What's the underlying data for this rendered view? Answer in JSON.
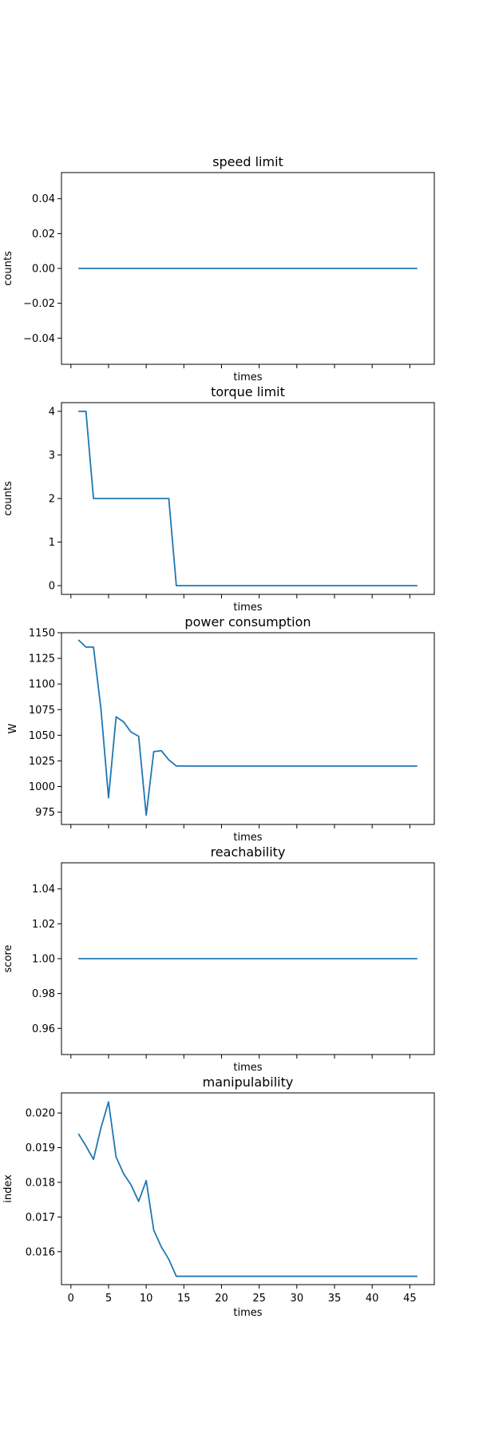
{
  "chart_data": [
    {
      "type": "line",
      "title": "speed limit",
      "xlabel": "times",
      "ylabel": "counts",
      "xlim": [
        -1.25,
        48.25
      ],
      "ylim": [
        -0.055,
        0.055
      ],
      "xticks": [
        0,
        5,
        10,
        15,
        20,
        25,
        30,
        35,
        40,
        45
      ],
      "yticks": [
        -0.04,
        -0.02,
        0.0,
        0.02,
        0.04
      ],
      "ytick_labels": [
        "−0.04",
        "−0.02",
        "0.00",
        "0.02",
        "0.04"
      ],
      "show_xtick_labels": false,
      "series": [
        {
          "x": [
            1,
            46
          ],
          "y": [
            0,
            0
          ]
        }
      ]
    },
    {
      "type": "line",
      "title": "torque limit",
      "xlabel": "times",
      "ylabel": "counts",
      "xlim": [
        -1.25,
        48.25
      ],
      "ylim": [
        -0.2,
        4.2
      ],
      "xticks": [
        0,
        5,
        10,
        15,
        20,
        25,
        30,
        35,
        40,
        45
      ],
      "yticks": [
        0,
        1,
        2,
        3,
        4
      ],
      "ytick_labels": [
        "0",
        "1",
        "2",
        "3",
        "4"
      ],
      "show_xtick_labels": false,
      "series": [
        {
          "x": [
            1,
            2,
            3,
            13,
            14,
            46
          ],
          "y": [
            4,
            4,
            2,
            2,
            0,
            0
          ]
        }
      ]
    },
    {
      "type": "line",
      "title": "power consumption",
      "xlabel": "times",
      "ylabel": "W",
      "xlim": [
        -1.25,
        48.25
      ],
      "ylim": [
        963,
        1150
      ],
      "xticks": [
        0,
        5,
        10,
        15,
        20,
        25,
        30,
        35,
        40,
        45
      ],
      "yticks": [
        975,
        1000,
        1025,
        1050,
        1075,
        1100,
        1125,
        1150
      ],
      "ytick_labels": [
        "975",
        "1000",
        "1025",
        "1050",
        "1075",
        "1100",
        "1125",
        "1150"
      ],
      "show_xtick_labels": false,
      "series": [
        {
          "x": [
            1,
            2,
            3,
            4,
            5,
            6,
            7,
            8,
            9,
            10,
            11,
            12,
            13,
            14,
            46
          ],
          "y": [
            1143,
            1136,
            1136,
            1075,
            989,
            1068,
            1063,
            1053,
            1049,
            972,
            1034,
            1035,
            1026,
            1020,
            1020
          ]
        }
      ]
    },
    {
      "type": "line",
      "title": "reachability",
      "xlabel": "times",
      "ylabel": "score",
      "xlim": [
        -1.25,
        48.25
      ],
      "ylim": [
        0.945,
        1.055
      ],
      "xticks": [
        0,
        5,
        10,
        15,
        20,
        25,
        30,
        35,
        40,
        45
      ],
      "yticks": [
        0.96,
        0.98,
        1.0,
        1.02,
        1.04
      ],
      "ytick_labels": [
        "0.96",
        "0.98",
        "1.00",
        "1.02",
        "1.04"
      ],
      "show_xtick_labels": false,
      "series": [
        {
          "x": [
            1,
            46
          ],
          "y": [
            1,
            1
          ]
        }
      ]
    },
    {
      "type": "line",
      "title": "manipulability",
      "xlabel": "times",
      "ylabel": "index",
      "xlim": [
        -1.25,
        48.25
      ],
      "ylim": [
        0.01505,
        0.02058
      ],
      "xticks": [
        0,
        5,
        10,
        15,
        20,
        25,
        30,
        35,
        40,
        45
      ],
      "yticks": [
        0.016,
        0.017,
        0.018,
        0.019,
        0.02
      ],
      "ytick_labels": [
        "0.016",
        "0.017",
        "0.018",
        "0.019",
        "0.020"
      ],
      "xtick_labels": [
        "0",
        "5",
        "10",
        "15",
        "20",
        "25",
        "30",
        "35",
        "40",
        "45"
      ],
      "show_xtick_labels": true,
      "series": [
        {
          "x": [
            1,
            2,
            3,
            4,
            5,
            6,
            7,
            8,
            9,
            10,
            11,
            12,
            13,
            14,
            46
          ],
          "y": [
            0.0194,
            0.01905,
            0.01866,
            0.01958,
            0.02032,
            0.01873,
            0.01825,
            0.01792,
            0.01745,
            0.01805,
            0.01662,
            0.01614,
            0.01578,
            0.01529,
            0.01529
          ]
        }
      ]
    }
  ]
}
